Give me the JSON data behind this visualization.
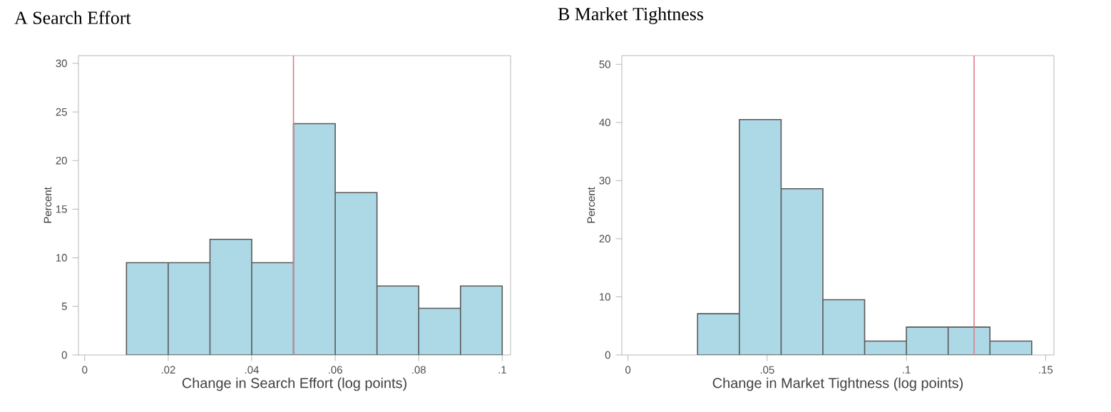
{
  "chart_data": [
    {
      "type": "histogram",
      "title": "A Search Effort",
      "xlabel": "Change in Search Effort (log points)",
      "ylabel": "Percent",
      "color": "#add8e6",
      "bins": [
        0.01,
        0.02,
        0.03,
        0.04,
        0.05,
        0.06,
        0.07,
        0.08,
        0.09,
        0.1
      ],
      "values": [
        9.5,
        9.5,
        11.9,
        9.5,
        23.8,
        16.7,
        7.1,
        4.8,
        7.1
      ],
      "xlim": [
        -0.0015,
        0.102
      ],
      "ylim": [
        0,
        30.8
      ],
      "xticks": [
        0,
        {
          "value": 0.02,
          "label": ".02"
        },
        {
          "value": 0.04,
          "label": ".04"
        },
        {
          "value": 0.06,
          "label": ".06"
        },
        {
          "value": 0.08,
          "label": ".08"
        },
        {
          "value": 0.1,
          "label": ".1"
        }
      ],
      "yticks": [
        0,
        5,
        10,
        15,
        20,
        25,
        30
      ],
      "ref_lines": [
        {
          "axis": "x",
          "value": 0.05,
          "color": "#e07a88"
        }
      ]
    },
    {
      "type": "histogram",
      "title": "B Market Tightness",
      "xlabel": "Change in Market Tightness (log points)",
      "ylabel": "Percent",
      "color": "#add8e6",
      "bins": [
        0.025,
        0.04,
        0.055,
        0.07,
        0.085,
        0.1,
        0.115,
        0.13,
        0.145
      ],
      "values": [
        7.1,
        40.5,
        28.6,
        9.5,
        2.4,
        4.8,
        4.8,
        2.4
      ],
      "xlim": [
        -0.0022,
        0.153
      ],
      "ylim": [
        0,
        51.5
      ],
      "xticks": [
        0,
        {
          "value": 0.05,
          "label": ".05"
        },
        {
          "value": 0.1,
          "label": ".1"
        },
        {
          "value": 0.15,
          "label": ".15"
        }
      ],
      "yticks": [
        0,
        10,
        20,
        30,
        40,
        50
      ],
      "ref_lines": [
        {
          "axis": "x",
          "value": 0.1243,
          "color": "#e07a88"
        }
      ]
    }
  ]
}
